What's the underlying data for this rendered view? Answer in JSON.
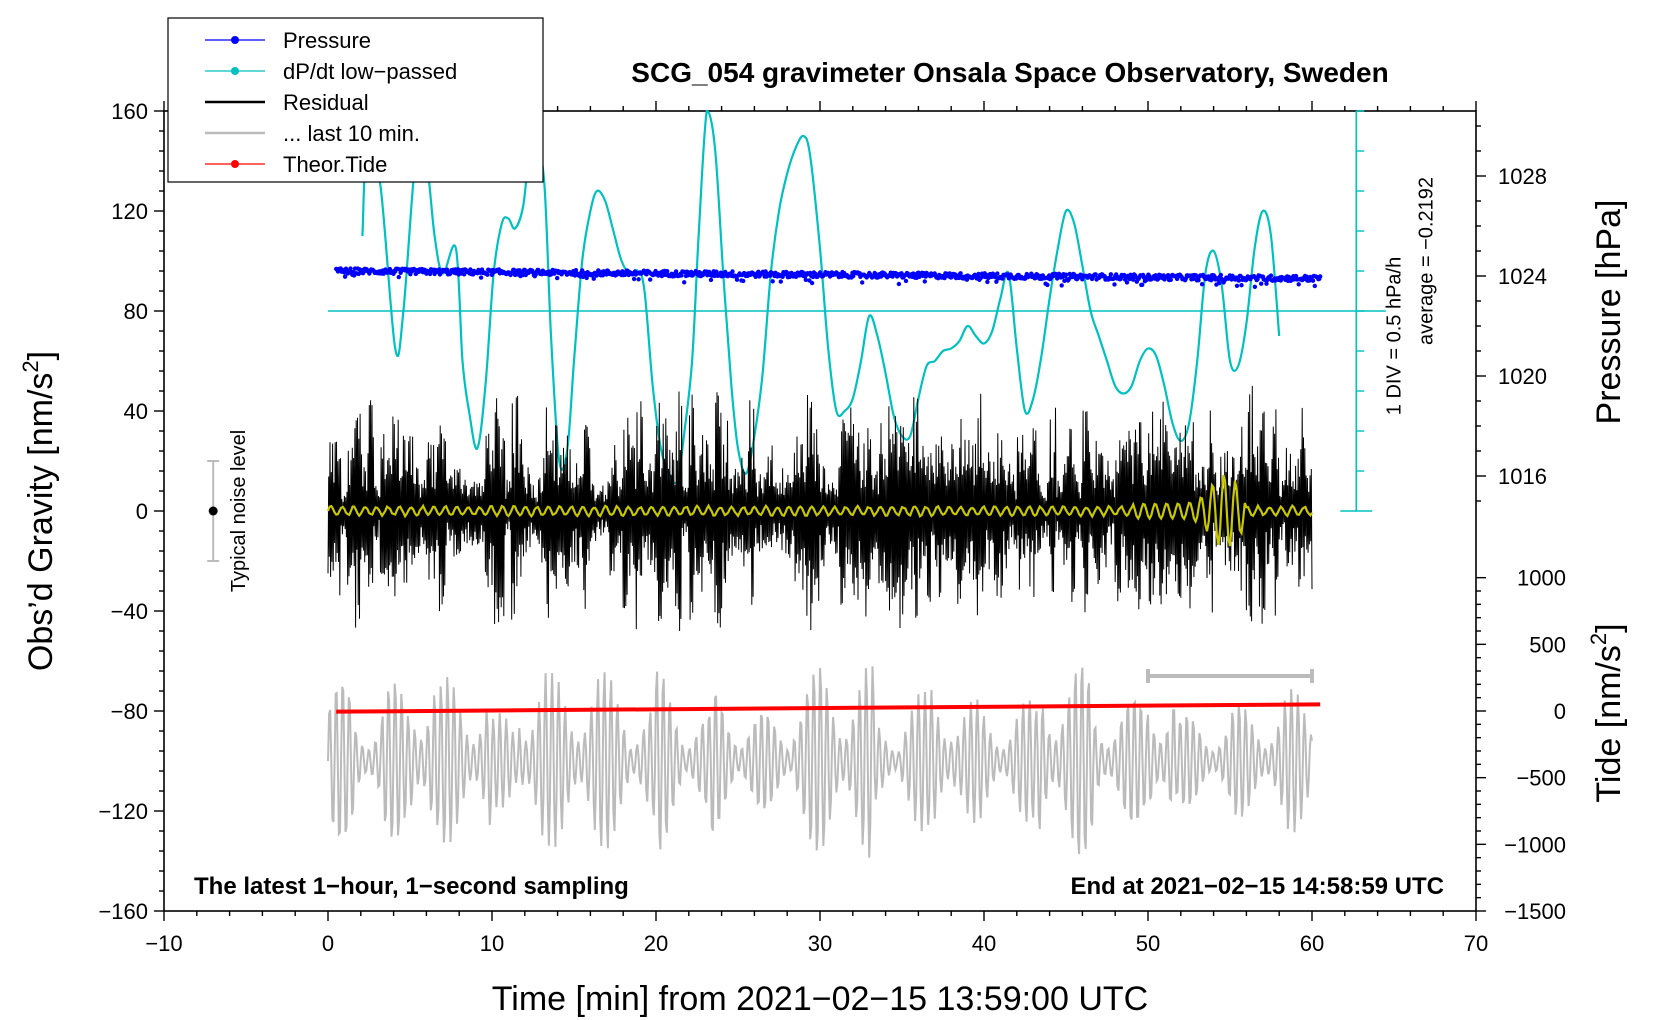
{
  "chart_data": {
    "type": "line",
    "title": "SCG_054 gravimeter Onsala Space Observatory, Sweden",
    "xlabel": "Time [min] from 2021−02−15 13:59:00 UTC",
    "ylabel_left": "Obs’d Gravity [nm/s",
    "ylabel_left_sup": "2",
    "ylabel_left_end": "]",
    "ylabel_right_pressure": "Pressure [hPa]",
    "ylabel_right_tide": "Tide [nm/s",
    "ylabel_right_tide_sup": "2",
    "ylabel_right_tide_end": "]",
    "xlim": [
      -10,
      70
    ],
    "ylim": [
      -160,
      160
    ],
    "x_ticks": [
      {
        "v": -10,
        "t": "−10"
      },
      {
        "v": 0,
        "t": "0"
      },
      {
        "v": 10,
        "t": "10"
      },
      {
        "v": 20,
        "t": "20"
      },
      {
        "v": 30,
        "t": "30"
      },
      {
        "v": 40,
        "t": "40"
      },
      {
        "v": 50,
        "t": "50"
      },
      {
        "v": 60,
        "t": "60"
      },
      {
        "v": 70,
        "t": "70"
      }
    ],
    "y_ticks": [
      {
        "v": 160,
        "t": "160"
      },
      {
        "v": 120,
        "t": "120"
      },
      {
        "v": 80,
        "t": "80"
      },
      {
        "v": 40,
        "t": "40"
      },
      {
        "v": 0,
        "t": "0"
      },
      {
        "v": -40,
        "t": "−40"
      },
      {
        "v": -80,
        "t": "−80"
      },
      {
        "v": -120,
        "t": "−120"
      },
      {
        "v": -160,
        "t": "−160"
      }
    ],
    "pressure_axis": {
      "mapping": "pressure 1024 hPa at gravity 94, 4 hPa per 40 gravity units",
      "ticks": [
        {
          "v": 1028,
          "t": "1028"
        },
        {
          "v": 1024,
          "t": "1024"
        },
        {
          "v": 1020,
          "t": "1020"
        },
        {
          "v": 1016,
          "t": "1016"
        }
      ]
    },
    "tide_axis": {
      "mapping": "tide 0 nm/s2 at gravity -80, 500 nm/s2 per 26.67 gravity units",
      "ticks": [
        {
          "v": 1000,
          "t": "1000"
        },
        {
          "v": 500,
          "t": "500"
        },
        {
          "v": 0,
          "t": "0"
        },
        {
          "v": -500,
          "t": "−500"
        },
        {
          "v": -1000,
          "t": "−1000"
        },
        {
          "v": -1500,
          "t": "−1500"
        }
      ]
    },
    "series": [
      {
        "name": "Pressure",
        "color": "#0000ff",
        "style": "dots",
        "x_range": [
          0.5,
          60.5
        ],
        "start_hpa": 1024.2,
        "end_hpa": 1023.9
      },
      {
        "name": "dP/dt low−passed",
        "color": "#00c0c0",
        "style": "line",
        "x": [
          2.1,
          2.4,
          3.2,
          4.1,
          4.6,
          5.4,
          6.0,
          6.5,
          7.0,
          7.8,
          8.2,
          8.6,
          9.1,
          9.6,
          10.1,
          10.6,
          11.0,
          11.4,
          11.9,
          12.3,
          12.7,
          13.2,
          13.6,
          14.1,
          14.6,
          15.0,
          15.5,
          16.0,
          16.4,
          16.9,
          17.4,
          17.9,
          18.4,
          18.9,
          19.3,
          19.8,
          20.3,
          20.8,
          21.3,
          21.7,
          22.2,
          22.6,
          23.1,
          23.6,
          24.1,
          24.6,
          25.0,
          25.5,
          26.0,
          26.5,
          27.0,
          27.5,
          28.0,
          28.5,
          29.0,
          29.4,
          30.0,
          30.5,
          31.0,
          31.5,
          32.0,
          32.5,
          33.0,
          33.5,
          34.0,
          34.5,
          35.0,
          35.5,
          36.0,
          36.5,
          37.0,
          37.5,
          38.0,
          38.5,
          39.0,
          39.5,
          40.0,
          40.5,
          41.0,
          41.5,
          42.0,
          42.5,
          43.0,
          43.5,
          44.0,
          44.5,
          45.0,
          45.5,
          46.0,
          46.5,
          47.0,
          47.5,
          48.0,
          48.5,
          49.0,
          49.5,
          50.0,
          50.5,
          51.0,
          51.5,
          52.0,
          52.5,
          53.0,
          53.5,
          54.0,
          54.5,
          55.0,
          55.5,
          56.0,
          56.5,
          57.0,
          57.5,
          58.0
        ],
        "values": [
          110,
          150,
          130,
          65,
          80,
          145,
          140,
          110,
          95,
          105,
          60,
          40,
          25,
          50,
          95,
          115,
          117,
          113,
          122,
          145,
          150,
          130,
          70,
          20,
          25,
          60,
          100,
          120,
          128,
          124,
          112,
          100,
          95,
          96,
          88,
          50,
          25,
          15,
          12,
          30,
          60,
          110,
          160,
          145,
          95,
          50,
          25,
          15,
          30,
          55,
          95,
          120,
          135,
          145,
          150,
          142,
          105,
          65,
          40,
          40,
          45,
          60,
          78,
          70,
          55,
          38,
          30,
          30,
          45,
          58,
          60,
          64,
          65,
          68,
          74,
          70,
          67,
          72,
          85,
          95,
          65,
          40,
          45,
          62,
          85,
          105,
          120,
          115,
          98,
          80,
          70,
          60,
          50,
          47,
          50,
          60,
          65,
          62,
          50,
          35,
          28,
          35,
          60,
          95,
          104,
          90,
          60,
          58,
          75,
          105,
          120,
          110,
          70
        ]
      },
      {
        "name": "Residual",
        "color": "#000000",
        "style": "line",
        "x_range": [
          0,
          60
        ],
        "amplitude": 45
      },
      {
        "name": "... last 10 min.",
        "color": "#bbbbbb",
        "style": "line",
        "x_range": [
          0,
          60
        ],
        "center": -100,
        "amplitude": 40
      },
      {
        "name": "Theor.Tide",
        "color": "#ff0000",
        "style": "dots",
        "x": [
          0.5,
          60.5
        ],
        "tide_values": [
          -5,
          50
        ]
      },
      {
        "name": "low-pass",
        "color": "#c8c800",
        "style": "line",
        "x_range": [
          0,
          60
        ]
      }
    ],
    "legend": [
      {
        "label": "Pressure",
        "color": "#0000ff",
        "marker": true
      },
      {
        "label": "dP/dt low−passed",
        "color": "#00c0c0",
        "marker": true
      },
      {
        "label": "Residual",
        "color": "#000000",
        "marker": false
      },
      {
        "label": "... last 10 min.",
        "color": "#bbbbbb",
        "marker": false
      },
      {
        "label": "Theor.Tide",
        "color": "#ff0000",
        "marker": true
      }
    ],
    "dpdt_scale": {
      "line_value": 80,
      "bottom_value": 0,
      "top_value": 160,
      "label1": "1 DIV = 0.5 hPa/h",
      "label2": "average = −0.2192"
    },
    "noise_bar": {
      "label": "Typical noise level",
      "center": 0,
      "half_range": 20,
      "x": -7
    },
    "last10_marker": {
      "x": [
        50,
        60
      ],
      "y": -66
    },
    "note_left": "The latest 1−hour, 1−second sampling",
    "note_right": "End at 2021−02−15 14:58:59 UTC"
  }
}
